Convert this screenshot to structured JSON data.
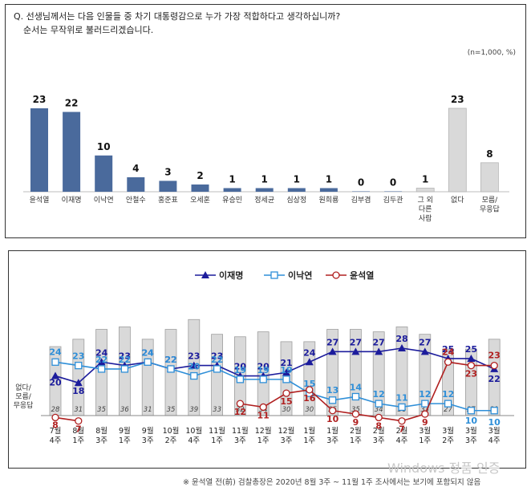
{
  "question": {
    "line1": "Q. 선생님께서는 다음 인물들 중 차기 대통령감으로 누가 가장 적합하다고 생각하십니까?",
    "line2": "순서는 무작위로 불러드리겠습니다.",
    "meta": "(n=1,000,  %)"
  },
  "footnote": "※ 윤석열 전(前) 검찰총장은 2020년 8월 3주 ~ 11월 1주 조사에서는 보기에 포함되지 않음",
  "watermark": "Windows 정품 인증",
  "colors": {
    "bar_dark": "#4a6a9c",
    "bar_light": "#d9d9d9",
    "line_lee": "#1c1c9c",
    "line_lee_nakyon": "#2f8fd8",
    "line_yoon": "#b02020"
  },
  "chart_data": [
    {
      "type": "bar",
      "categories": [
        "윤석열",
        "이재명",
        "이낙연",
        "안철수",
        "홍준표",
        "오세훈",
        "유승민",
        "정세균",
        "심상정",
        "원희룡",
        "김부겸",
        "김두관",
        "그 외\n다른\n사람",
        "없다",
        "모름/\n무응답"
      ],
      "values": [
        23,
        22,
        10,
        4,
        3,
        2,
        1,
        1,
        1,
        1,
        0,
        0,
        1,
        23,
        8
      ],
      "highlight": [
        "dark",
        "dark",
        "dark",
        "dark",
        "dark",
        "dark",
        "dark",
        "dark",
        "dark",
        "dark",
        "dark",
        "dark",
        "light",
        "light",
        "light"
      ],
      "ylim": [
        0,
        25
      ]
    },
    {
      "type": "line",
      "categories": [
        "7월\n4주",
        "8월\n1주",
        "8월\n3주",
        "9월\n1주",
        "9월\n3주",
        "10월\n2주",
        "10월\n4주",
        "11월\n1주",
        "11월\n3주",
        "12월\n1주",
        "12월\n3주",
        "1월\n1주",
        "1월\n3주",
        "2월\n1주",
        "2월\n3주",
        "2월\n4주",
        "3월\n1주",
        "3월\n2주",
        "3월\n3주",
        "3월\n4주"
      ],
      "legend": [
        "이재명",
        "이낙연",
        "윤석열"
      ],
      "bar_label": "없다/\n모름/\n무응답",
      "bars": [
        28,
        31,
        35,
        36,
        31,
        35,
        39,
        33,
        32,
        34,
        30,
        30,
        35,
        35,
        34,
        36,
        33,
        27,
        27,
        31
      ],
      "series": [
        {
          "name": "이재명",
          "values": [
            20,
            18,
            24,
            23,
            24,
            22,
            23,
            23,
            20,
            20,
            21,
            24,
            27,
            27,
            27,
            28,
            27,
            25,
            25,
            22
          ]
        },
        {
          "name": "이낙연",
          "values": [
            24,
            23,
            22,
            22,
            24,
            22,
            20,
            22,
            19,
            19,
            19,
            15,
            13,
            14,
            12,
            11,
            12,
            12,
            10,
            10
          ]
        },
        {
          "name": "윤석열",
          "values": [
            8,
            7,
            null,
            null,
            null,
            null,
            null,
            null,
            12,
            11,
            15,
            16,
            10,
            9,
            8,
            7,
            9,
            24,
            23,
            23
          ]
        }
      ],
      "ylim": [
        0,
        45
      ]
    }
  ]
}
